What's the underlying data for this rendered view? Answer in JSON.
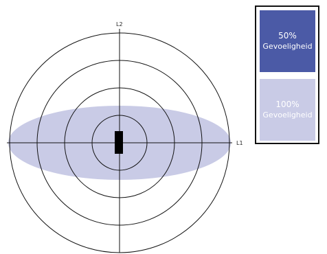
{
  "colors": {
    "sensitivity_50": "#4b5aa6",
    "sensitivity_100": "#c9cbe6",
    "lines": "#111111"
  },
  "diagram": {
    "axis_x_label": "L1",
    "axis_y_label": "L2"
  },
  "legend": {
    "items": [
      {
        "percent": "50%",
        "label": "Gevoeligheid",
        "color": "#4b5aa6"
      },
      {
        "percent": "100%",
        "label": "Gevoeligheid",
        "color": "#c9cbe6"
      }
    ]
  }
}
